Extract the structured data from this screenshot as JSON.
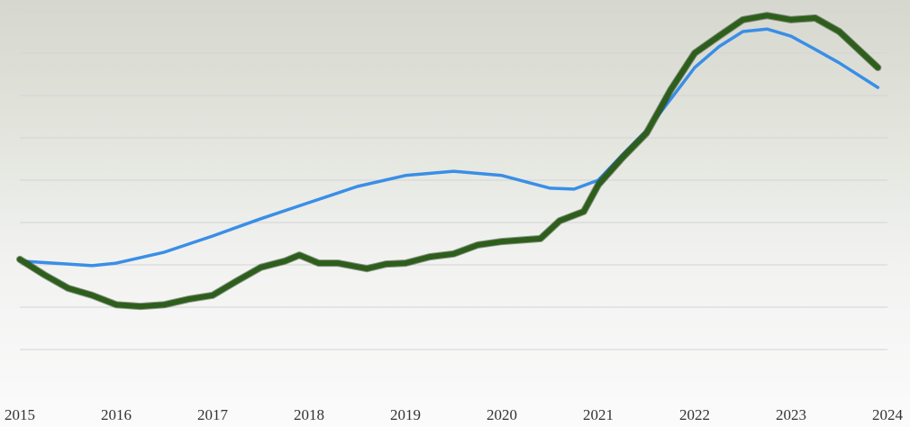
{
  "chart_data": {
    "type": "line",
    "xlim": [
      2015,
      2024
    ],
    "xticks": [
      2015,
      2016,
      2017,
      2018,
      2019,
      2020,
      2021,
      2022,
      2023,
      2024
    ],
    "ylim": [
      0,
      8
    ],
    "yticks": [
      0,
      1,
      2,
      3,
      4,
      5,
      6,
      7,
      8
    ],
    "grid": true,
    "series": [
      {
        "color": "#3a8ee6",
        "x": [
          2015,
          2015.5,
          2015.75,
          2016,
          2016.5,
          2017,
          2017.5,
          2018,
          2018.5,
          2019,
          2019.5,
          2020,
          2020.5,
          2020.75,
          2021,
          2021.25,
          2021.5,
          2021.75,
          2022,
          2022.25,
          2022.5,
          2022.75,
          2023,
          2023.25,
          2023.5,
          2023.9
        ],
        "values": [
          2.09,
          2.02,
          1.98,
          2.04,
          2.3,
          2.68,
          3.09,
          3.47,
          3.85,
          4.11,
          4.21,
          4.11,
          3.81,
          3.79,
          4.0,
          4.6,
          5.17,
          5.91,
          6.66,
          7.15,
          7.51,
          7.57,
          7.4,
          7.09,
          6.77,
          6.19
        ]
      },
      {
        "color": "#2e5e1c",
        "x": [
          2015,
          2015.25,
          2015.5,
          2015.75,
          2016,
          2016.25,
          2016.5,
          2016.75,
          2017,
          2017.25,
          2017.5,
          2017.75,
          2017.9,
          2018.1,
          2018.3,
          2018.6,
          2018.8,
          2019,
          2019.25,
          2019.5,
          2019.75,
          2020,
          2020.4,
          2020.6,
          2020.85,
          2021,
          2021.25,
          2021.5,
          2021.75,
          2022,
          2022.25,
          2022.5,
          2022.75,
          2023,
          2023.25,
          2023.5,
          2023.9
        ],
        "values": [
          2.13,
          1.77,
          1.45,
          1.28,
          1.06,
          1.02,
          1.06,
          1.19,
          1.28,
          1.62,
          1.94,
          2.09,
          2.23,
          2.04,
          2.04,
          1.91,
          2.02,
          2.04,
          2.19,
          2.26,
          2.47,
          2.55,
          2.62,
          3.04,
          3.26,
          3.89,
          4.53,
          5.11,
          6.13,
          7.0,
          7.4,
          7.79,
          7.89,
          7.79,
          7.83,
          7.51,
          6.66
        ]
      }
    ]
  }
}
